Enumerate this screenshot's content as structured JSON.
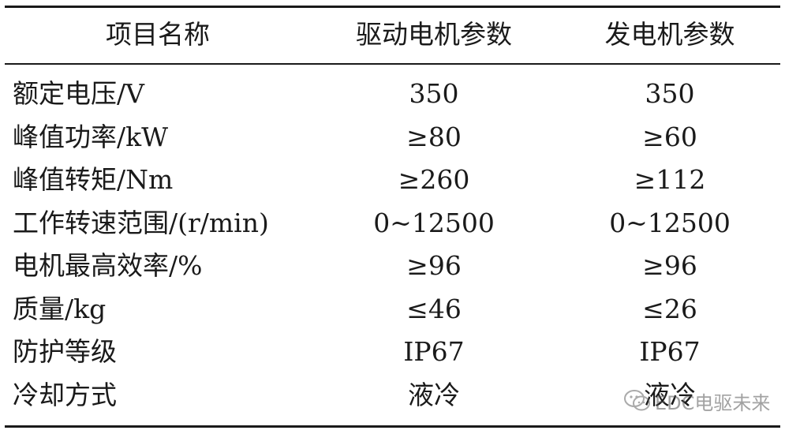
{
  "table": {
    "headers": [
      "项目名称",
      "驱动电机参数",
      "发电机参数"
    ],
    "rows": [
      [
        "额定电压/V",
        "350",
        "350"
      ],
      [
        "峰值功率/kW",
        "≥80",
        "≥60"
      ],
      [
        "峰值转矩/Nm",
        "≥260",
        "≥112"
      ],
      [
        "工作转速范围/(r/min)",
        "0~12500",
        "0~12500"
      ],
      [
        "电机最高效率/%",
        "≥96",
        "≥96"
      ],
      [
        "质量/kg",
        "≤46",
        "≤26"
      ],
      [
        "防护等级",
        "IP67",
        "IP67"
      ],
      [
        "冷却方式",
        "液冷",
        "液冷"
      ]
    ]
  },
  "watermark": {
    "icon": "wechat-icon",
    "text": "EDC电驱未来"
  }
}
